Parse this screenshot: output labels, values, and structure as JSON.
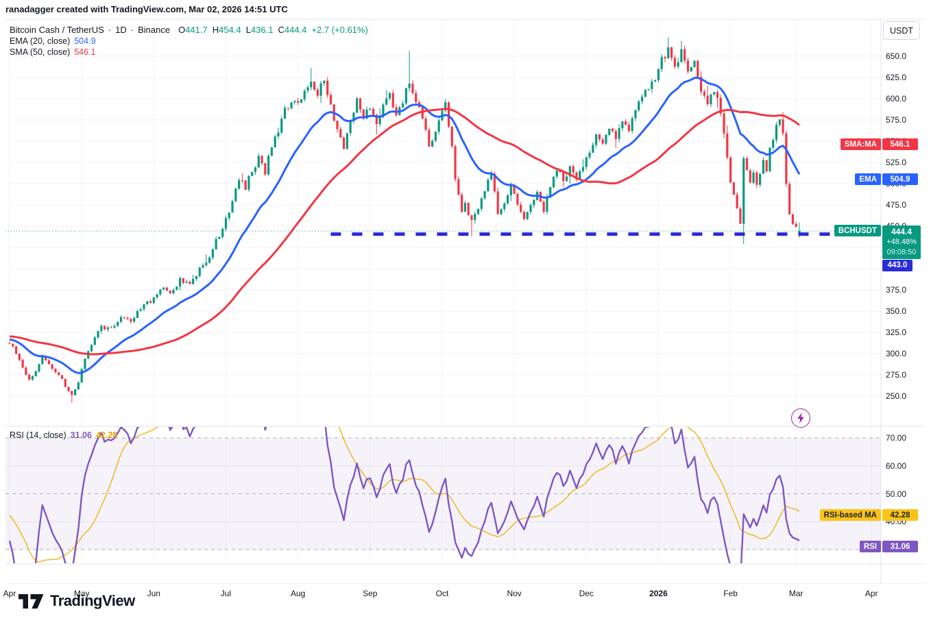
{
  "watermark": "ranadagger created with TradingView.com, Mar 02, 2026 14:51 UTC",
  "header": {
    "symbol_title": "Bitcoin Cash / TetherUS",
    "sep1": "·",
    "interval": "1D",
    "sep2": "·",
    "exchange": "Binance",
    "ohlc": {
      "o_label": "O",
      "o": "441.7",
      "h_label": "H",
      "h": "454.4",
      "l_label": "L",
      "l": "436.1",
      "c_label": "C",
      "c": "444.4",
      "change": "+2.7 (+0.61%)"
    },
    "ema_label": "EMA (20, close)",
    "ema_value": "504.9",
    "sma_label": "SMA (50, close)",
    "sma_value": "546.1"
  },
  "rsi_legend": {
    "label": "RSI (14, close)",
    "rsi_value": "31.06",
    "ma_value": "42.28"
  },
  "axis": {
    "currency_button": "USDT"
  },
  "pills": {
    "sma": {
      "name": "SMA:MA",
      "value": "546.1",
      "color": "#F23645"
    },
    "ema": {
      "name": "EMA",
      "value": "504.9",
      "color": "#2962FF"
    },
    "symbol": {
      "name": "BCHUSDT",
      "price": "444.4",
      "change_pct": "+48.48%",
      "countdown": "09:08:50",
      "color": "#089981"
    },
    "hline": {
      "value": "443.0",
      "color": "#2B2BD6"
    },
    "rsi_ma": {
      "name": "RSI-based MA",
      "value": "42.28",
      "color": "#FBC318"
    },
    "rsi": {
      "name": "RSI",
      "value": "31.06",
      "color": "#7E57C2"
    }
  },
  "logo": {
    "text": "TradingView"
  },
  "chart_data": {
    "type": "candlestick",
    "symbol": "BCHUSDT",
    "interval": "1D",
    "exchange": "Binance",
    "title": "Bitcoin Cash / TetherUS",
    "last_candle": [
      441.7,
      454.4,
      436.1,
      444.4
    ],
    "ohlc_display": {
      "open": 441.7,
      "high": 454.4,
      "low": 436.1,
      "close": 444.4,
      "change": 2.7,
      "change_pct": 0.61
    },
    "levels": {
      "price": 444.4,
      "hline": 443.0,
      "ema": 504.9,
      "sma": 546.1,
      "rsi": 31.06,
      "rsi_ma": 42.28
    },
    "overlays": [
      {
        "name": "EMA",
        "period": 20,
        "source": "close",
        "last": 504.9,
        "color": "#2962FF"
      },
      {
        "name": "SMA",
        "period": 50,
        "source": "close",
        "last": 546.1,
        "color": "#F23645"
      }
    ],
    "rsi_study": {
      "period": 14,
      "source": "close",
      "last": 31.06,
      "ma_last": 42.28,
      "bands": [
        70,
        50,
        30
      ],
      "band_fill": "rgba(126,87,194,0.08)"
    },
    "price_axis": {
      "unit": "USDT",
      "ticks": [
        650,
        625,
        600,
        575,
        550,
        525,
        500,
        475,
        450,
        425,
        400,
        375,
        350,
        325,
        300,
        275,
        250
      ]
    },
    "rsi_axis": {
      "ticks": [
        70,
        60,
        50,
        40
      ]
    },
    "months": [
      [
        "Apr",
        0
      ],
      [
        "May",
        22
      ],
      [
        "Jun",
        44
      ],
      [
        "Jul",
        66
      ],
      [
        "Aug",
        88
      ],
      [
        "Sep",
        110
      ],
      [
        "Oct",
        132
      ],
      [
        "Nov",
        154
      ],
      [
        "Dec",
        176
      ],
      [
        "2026",
        198
      ],
      [
        "Feb",
        220
      ],
      [
        "Mar",
        240
      ],
      [
        "Apr",
        263
      ]
    ],
    "bold_month": "2026",
    "n_candles": 242,
    "warmup": 55,
    "close_anchors": [
      [
        -55,
        328
      ],
      [
        -35,
        322
      ],
      [
        -20,
        318
      ],
      [
        -10,
        320
      ],
      [
        -1,
        314
      ],
      [
        0,
        312
      ],
      [
        2,
        300
      ],
      [
        4,
        285
      ],
      [
        6,
        268
      ],
      [
        8,
        278
      ],
      [
        10,
        295
      ],
      [
        12,
        288
      ],
      [
        15,
        275
      ],
      [
        17,
        262
      ],
      [
        19,
        252
      ],
      [
        21,
        268
      ],
      [
        23,
        295
      ],
      [
        26,
        318
      ],
      [
        28,
        332
      ],
      [
        31,
        328
      ],
      [
        34,
        345
      ],
      [
        37,
        338
      ],
      [
        40,
        355
      ],
      [
        43,
        362
      ],
      [
        46,
        378
      ],
      [
        49,
        370
      ],
      [
        52,
        388
      ],
      [
        55,
        382
      ],
      [
        58,
        400
      ],
      [
        61,
        415
      ],
      [
        64,
        440
      ],
      [
        66,
        460
      ],
      [
        68,
        478
      ],
      [
        70,
        505
      ],
      [
        72,
        495
      ],
      [
        74,
        515
      ],
      [
        76,
        530
      ],
      [
        78,
        515
      ],
      [
        80,
        545
      ],
      [
        82,
        560
      ],
      [
        84,
        585
      ],
      [
        86,
        600
      ],
      [
        88,
        592
      ],
      [
        90,
        610
      ],
      [
        92,
        625
      ],
      [
        94,
        605
      ],
      [
        96,
        622
      ],
      [
        98,
        590
      ],
      [
        100,
        565
      ],
      [
        102,
        545
      ],
      [
        104,
        570
      ],
      [
        106,
        598
      ],
      [
        108,
        580
      ],
      [
        110,
        592
      ],
      [
        112,
        570
      ],
      [
        114,
        590
      ],
      [
        116,
        605
      ],
      [
        118,
        582
      ],
      [
        120,
        598
      ],
      [
        122,
        618
      ],
      [
        124,
        600
      ],
      [
        126,
        575
      ],
      [
        128,
        545
      ],
      [
        130,
        560
      ],
      [
        132,
        585
      ],
      [
        133,
        592
      ],
      [
        135,
        540
      ],
      [
        136,
        505
      ],
      [
        138,
        470
      ],
      [
        139,
        475
      ],
      [
        141,
        455
      ],
      [
        143,
        470
      ],
      [
        145,
        495
      ],
      [
        147,
        515
      ],
      [
        149,
        465
      ],
      [
        151,
        480
      ],
      [
        153,
        498
      ],
      [
        155,
        478
      ],
      [
        157,
        458
      ],
      [
        159,
        472
      ],
      [
        161,
        488
      ],
      [
        163,
        470
      ],
      [
        165,
        495
      ],
      [
        167,
        515
      ],
      [
        169,
        505
      ],
      [
        171,
        520
      ],
      [
        173,
        508
      ],
      [
        175,
        522
      ],
      [
        177,
        540
      ],
      [
        179,
        558
      ],
      [
        181,
        545
      ],
      [
        183,
        568
      ],
      [
        185,
        552
      ],
      [
        187,
        575
      ],
      [
        189,
        562
      ],
      [
        191,
        585
      ],
      [
        193,
        600
      ],
      [
        195,
        612
      ],
      [
        197,
        625
      ],
      [
        199,
        645
      ],
      [
        201,
        660
      ],
      [
        203,
        638
      ],
      [
        205,
        655
      ],
      [
        207,
        630
      ],
      [
        209,
        645
      ],
      [
        211,
        612
      ],
      [
        213,
        598
      ],
      [
        215,
        608
      ],
      [
        217,
        585
      ],
      [
        218,
        560
      ],
      [
        219,
        530
      ],
      [
        220,
        505
      ],
      [
        221,
        488
      ],
      [
        222,
        470
      ],
      [
        223,
        455
      ],
      [
        224,
        530
      ],
      [
        225,
        515
      ],
      [
        226,
        500
      ],
      [
        227,
        512
      ],
      [
        228,
        498
      ],
      [
        229,
        510
      ],
      [
        230,
        525
      ],
      [
        231,
        515
      ],
      [
        232,
        540
      ],
      [
        233,
        555
      ],
      [
        234,
        572
      ],
      [
        235,
        578
      ],
      [
        236,
        555
      ],
      [
        237,
        500
      ],
      [
        238,
        465
      ],
      [
        239,
        450
      ],
      [
        240,
        446
      ],
      [
        241,
        444.4
      ]
    ],
    "wick_overrides": [
      [
        19,
        "L",
        242
      ],
      [
        92,
        "H",
        636
      ],
      [
        122,
        "H",
        656
      ],
      [
        141,
        "L",
        438
      ],
      [
        201,
        "H",
        672
      ],
      [
        205,
        "H",
        668
      ],
      [
        224,
        "L",
        429
      ],
      [
        241,
        "L",
        436
      ]
    ],
    "hline_start_i": 98,
    "colors": {
      "up": "#089981",
      "down": "#F23645",
      "ema": "#2962FF",
      "sma": "#F23645",
      "rsi": "#7E57C2",
      "rsi_ma": "#F0B40F",
      "hline": "#2B2BD6",
      "price_line": "#089981",
      "grid": "rgba(19,23,34,0.055)",
      "border": "#E0E3EB",
      "band_dash": "#787B86"
    }
  }
}
